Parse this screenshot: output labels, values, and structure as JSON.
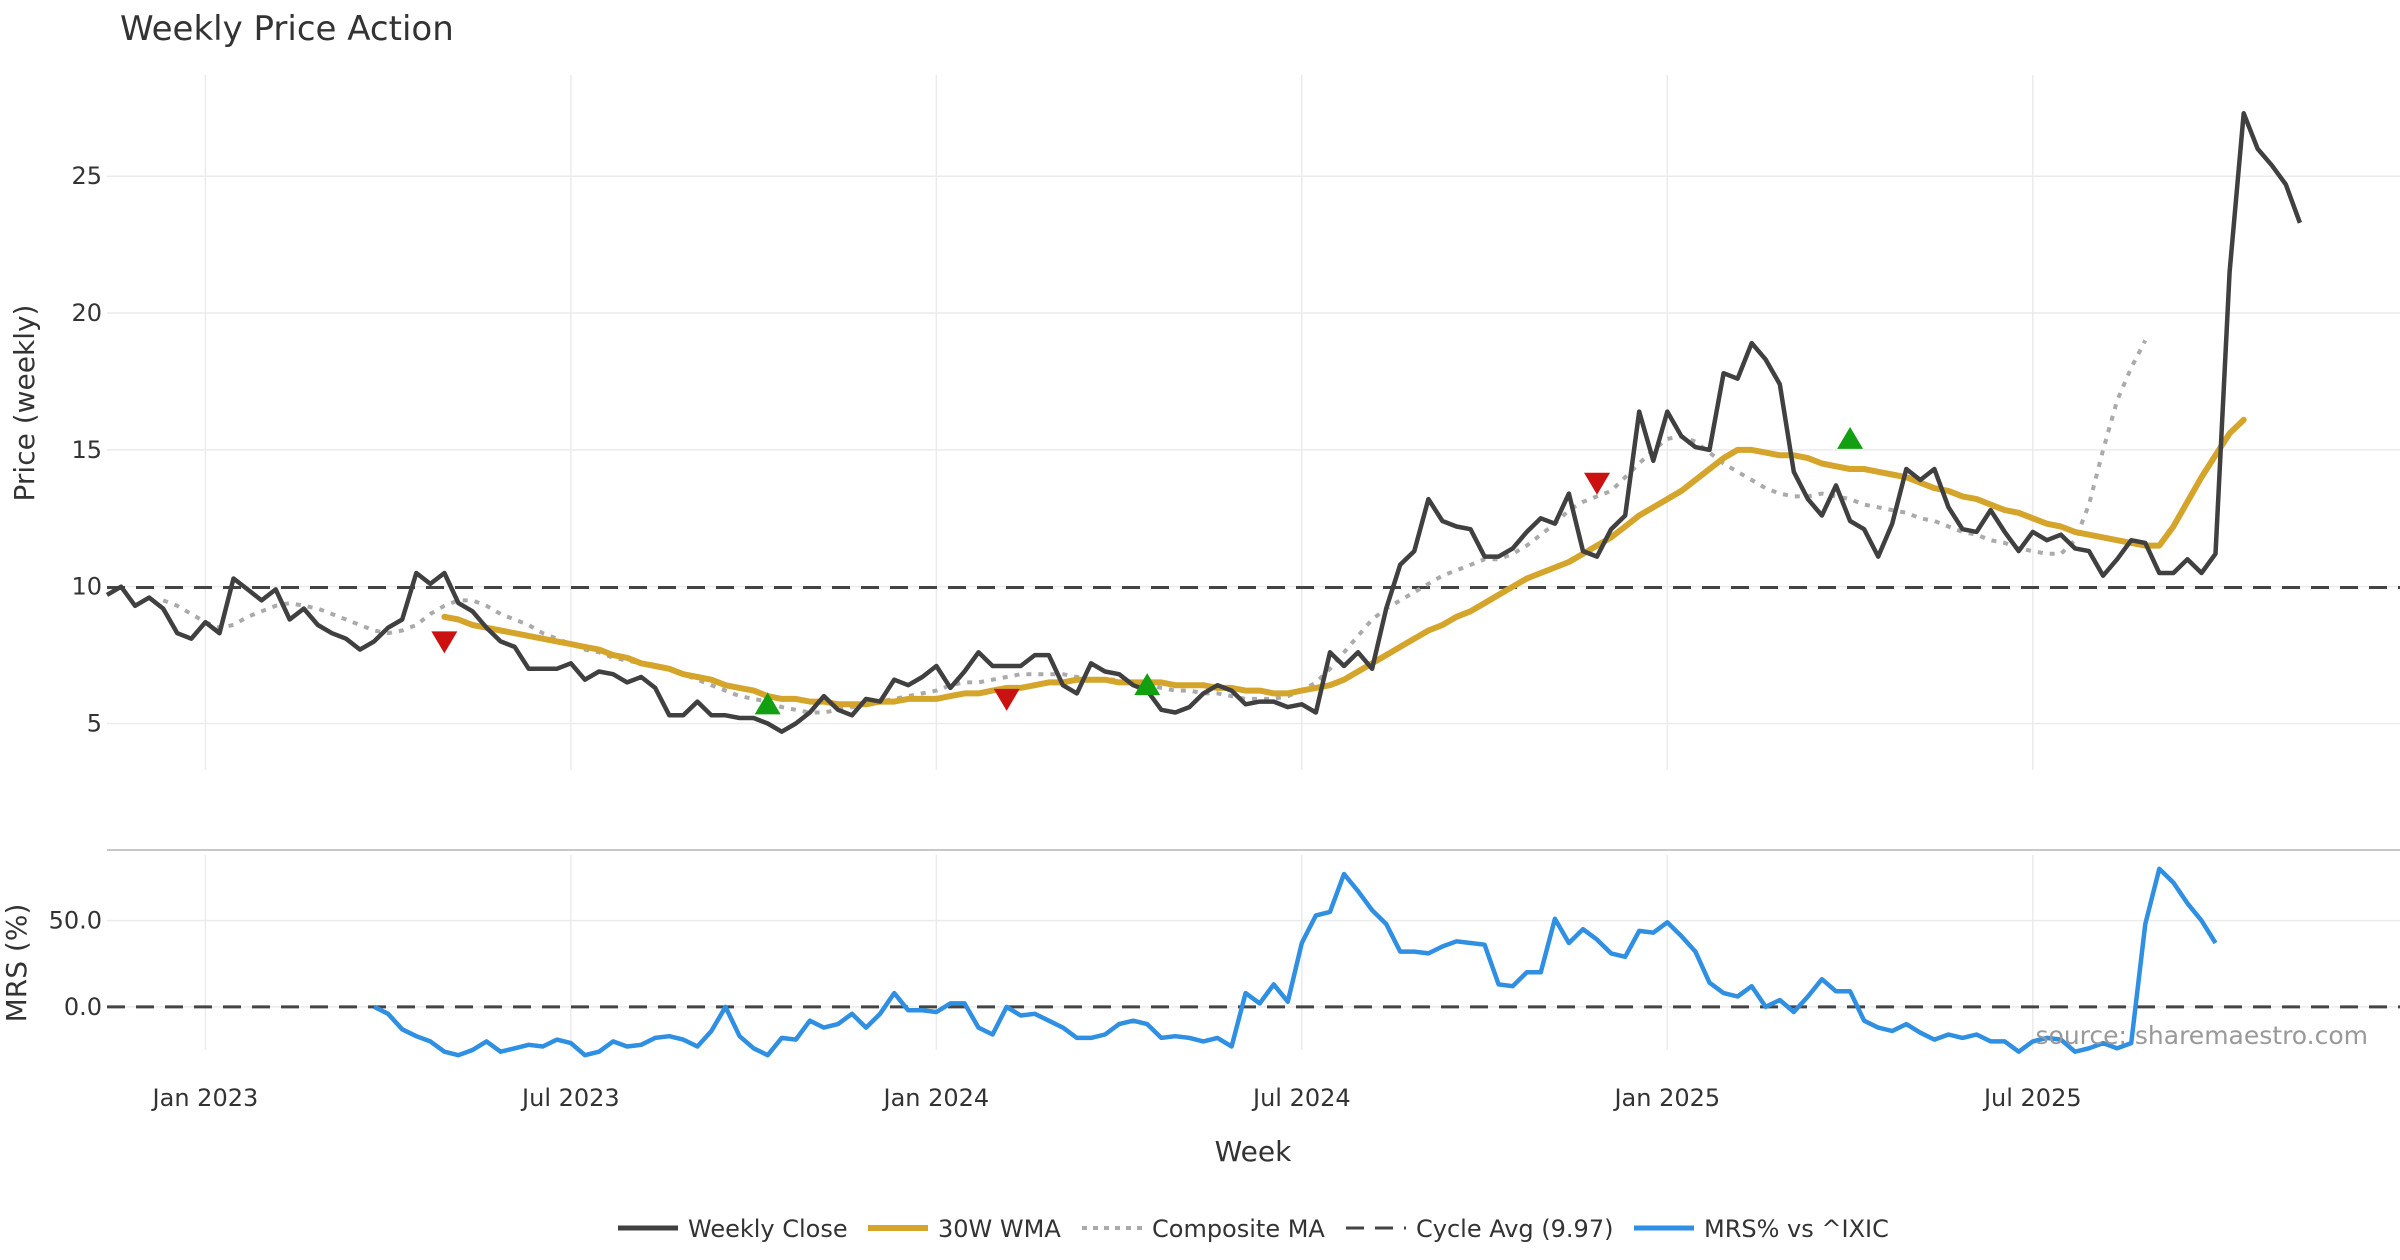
{
  "chart_data": {
    "type": "line",
    "title": "Weekly Price Action",
    "x_label": "Week",
    "price_panel": {
      "y_label": "Price (weekly)",
      "y_range": [
        3.3,
        28.7
      ],
      "y_ticks": [
        5,
        10,
        15,
        20,
        25
      ],
      "cycle_avg": 9.97,
      "weekly_close": [
        9.7,
        10.0,
        9.3,
        9.6,
        9.2,
        8.3,
        8.1,
        8.7,
        8.3,
        10.3,
        9.9,
        9.5,
        9.9,
        8.8,
        9.2,
        8.6,
        8.3,
        8.1,
        7.7,
        8.0,
        8.5,
        8.8,
        10.5,
        10.1,
        10.5,
        9.4,
        9.1,
        8.5,
        8.0,
        7.8,
        7.0,
        7.0,
        7.0,
        7.2,
        6.6,
        6.9,
        6.8,
        6.5,
        6.7,
        6.3,
        5.3,
        5.3,
        5.8,
        5.3,
        5.3,
        5.2,
        5.2,
        5.0,
        4.7,
        5.0,
        5.4,
        6.0,
        5.5,
        5.3,
        5.9,
        5.8,
        6.6,
        6.4,
        6.7,
        7.1,
        6.3,
        6.9,
        7.6,
        7.1,
        7.1,
        7.1,
        7.5,
        7.5,
        6.4,
        6.1,
        7.2,
        6.9,
        6.8,
        6.4,
        6.2,
        5.5,
        5.4,
        5.6,
        6.1,
        6.4,
        6.2,
        5.7,
        5.8,
        5.8,
        5.6,
        5.7,
        5.4,
        7.6,
        7.1,
        7.6,
        7.0,
        9.2,
        10.8,
        11.3,
        13.2,
        12.4,
        12.2,
        12.1,
        11.1,
        11.1,
        11.4,
        12.0,
        12.5,
        12.3,
        13.4,
        11.3,
        11.1,
        12.1,
        12.6,
        16.4,
        14.6,
        16.4,
        15.5,
        15.1,
        15.0,
        17.8,
        17.6,
        18.9,
        18.3,
        17.4,
        14.2,
        13.2,
        12.6,
        13.7,
        12.4,
        12.1,
        11.1,
        12.3,
        14.3,
        13.9,
        14.3,
        12.9,
        12.1,
        12.0,
        12.8,
        12.0,
        11.3,
        12.0,
        11.7,
        11.9,
        11.4,
        11.3,
        10.4,
        11.0,
        11.7,
        11.6,
        10.5,
        10.5,
        11.0,
        10.5,
        11.2,
        21.5,
        27.3,
        26.0,
        25.4,
        24.7,
        23.3
      ],
      "wma_30w_start_index": 24,
      "wma_30w": [
        8.9,
        8.8,
        8.6,
        8.5,
        8.4,
        8.3,
        8.2,
        8.1,
        8.0,
        7.9,
        7.8,
        7.7,
        7.5,
        7.4,
        7.2,
        7.1,
        7.0,
        6.8,
        6.7,
        6.6,
        6.4,
        6.3,
        6.2,
        6.0,
        5.9,
        5.9,
        5.8,
        5.8,
        5.7,
        5.7,
        5.7,
        5.8,
        5.8,
        5.9,
        5.9,
        5.9,
        6.0,
        6.1,
        6.1,
        6.2,
        6.3,
        6.3,
        6.4,
        6.5,
        6.5,
        6.6,
        6.6,
        6.6,
        6.5,
        6.5,
        6.5,
        6.5,
        6.4,
        6.4,
        6.4,
        6.3,
        6.3,
        6.2,
        6.2,
        6.1,
        6.1,
        6.2,
        6.3,
        6.4,
        6.6,
        6.9,
        7.2,
        7.5,
        7.8,
        8.1,
        8.4,
        8.6,
        8.9,
        9.1,
        9.4,
        9.7,
        10.0,
        10.3,
        10.5,
        10.7,
        10.9,
        11.2,
        11.5,
        11.8,
        12.2,
        12.6,
        12.9,
        13.2,
        13.5,
        13.9,
        14.3,
        14.7,
        15.0,
        15.0,
        14.9,
        14.8,
        14.8,
        14.7,
        14.5,
        14.4,
        14.3,
        14.3,
        14.2,
        14.1,
        14.0,
        13.8,
        13.6,
        13.5,
        13.3,
        13.2,
        13.0,
        12.8,
        12.7,
        12.5,
        12.3,
        12.2,
        12.0,
        11.9,
        11.8,
        11.7,
        11.6,
        11.5,
        11.5,
        12.2,
        13.1,
        14.0,
        14.8,
        15.6,
        16.1
      ],
      "composite_ma_start_index": 4,
      "composite_ma": [
        9.5,
        9.3,
        9.0,
        8.7,
        8.5,
        8.6,
        8.9,
        9.1,
        9.3,
        9.4,
        9.3,
        9.2,
        9.0,
        8.8,
        8.6,
        8.4,
        8.3,
        8.4,
        8.6,
        9.0,
        9.3,
        9.5,
        9.5,
        9.3,
        9.0,
        8.8,
        8.6,
        8.3,
        8.1,
        7.9,
        7.7,
        7.6,
        7.4,
        7.3,
        7.2,
        7.1,
        7.0,
        6.8,
        6.6,
        6.4,
        6.2,
        6.0,
        5.9,
        5.8,
        5.6,
        5.5,
        5.4,
        5.4,
        5.5,
        5.6,
        5.7,
        5.8,
        5.9,
        6.0,
        6.1,
        6.2,
        6.4,
        6.5,
        6.5,
        6.6,
        6.7,
        6.8,
        6.8,
        6.8,
        6.8,
        6.7,
        6.6,
        6.6,
        6.6,
        6.5,
        6.4,
        6.3,
        6.2,
        6.2,
        6.1,
        6.1,
        6.0,
        5.9,
        5.9,
        5.9,
        6.0,
        6.2,
        6.5,
        7.0,
        7.6,
        8.2,
        8.8,
        9.2,
        9.5,
        9.8,
        10.1,
        10.4,
        10.6,
        10.8,
        11.0,
        11.0,
        11.2,
        11.5,
        11.9,
        12.3,
        12.8,
        13.1,
        13.3,
        13.5,
        14.0,
        14.5,
        15.0,
        15.4,
        15.5,
        15.3,
        14.9,
        14.5,
        14.2,
        13.9,
        13.6,
        13.4,
        13.3,
        13.3,
        13.4,
        13.3,
        13.2,
        13.0,
        12.9,
        12.8,
        12.7,
        12.5,
        12.4,
        12.2,
        12.0,
        11.9,
        11.7,
        11.6,
        11.4,
        11.3,
        11.2,
        11.2,
        11.7,
        13.0,
        15.0,
        16.8,
        18.0,
        19.0
      ],
      "signals": [
        {
          "type": "sell",
          "index": 24,
          "value": 8.0
        },
        {
          "type": "buy",
          "index": 47,
          "value": 5.7
        },
        {
          "type": "sell",
          "index": 64,
          "value": 5.9
        },
        {
          "type": "buy",
          "index": 74,
          "value": 6.4
        },
        {
          "type": "sell",
          "index": 106,
          "value": 13.8
        },
        {
          "type": "buy",
          "index": 124,
          "value": 15.4
        }
      ]
    },
    "mrs_panel": {
      "y_label": "MRS (%)",
      "y_range": [
        -25,
        88
      ],
      "y_ticks": [
        "0.0",
        "50.0"
      ],
      "zero_line": 0,
      "start_index": 19,
      "values": [
        0,
        -4,
        -13,
        -17,
        -20,
        -26,
        -28,
        -25,
        -20,
        -26,
        -24,
        -22,
        -23,
        -19,
        -21,
        -28,
        -26,
        -20,
        -23,
        -22,
        -18,
        -17,
        -19,
        -23,
        -14,
        0,
        -17,
        -24,
        -28,
        -18,
        -19,
        -8,
        -12,
        -10,
        -4,
        -12,
        -4,
        8,
        -2,
        -2,
        -3,
        2,
        2,
        -12,
        -16,
        0,
        -5,
        -4,
        -8,
        -12,
        -18,
        -18,
        -16,
        -10,
        -8,
        -10,
        -18,
        -17,
        -18,
        -20,
        -18,
        -23,
        8,
        2,
        13,
        3,
        37,
        53,
        55,
        77,
        67,
        56,
        48,
        32,
        32,
        31,
        35,
        38,
        37,
        36,
        13,
        12,
        20,
        20,
        51,
        37,
        45,
        39,
        31,
        29,
        44,
        43,
        49,
        41,
        32,
        14,
        8,
        6,
        12,
        0,
        4,
        -3,
        6,
        16,
        9,
        9,
        -8,
        -12,
        -14,
        -10,
        -15,
        -19,
        -16,
        -18,
        -16,
        -20,
        -20,
        -26,
        -20,
        -18,
        -19,
        -26,
        -24,
        -21,
        -24,
        -21,
        48,
        80,
        72,
        60,
        50,
        37
      ]
    },
    "x_axis": {
      "num_weeks": 159,
      "ticks": [
        {
          "label": "Jan 2023",
          "index": 7
        },
        {
          "label": "Jul 2023",
          "index": 33
        },
        {
          "label": "Jan 2024",
          "index": 59
        },
        {
          "label": "Jul 2024",
          "index": 85
        },
        {
          "label": "Jan 2025",
          "index": 111
        },
        {
          "label": "Jul 2025",
          "index": 137
        }
      ]
    },
    "legend": [
      {
        "label": "Weekly Close",
        "style": "solid-dark"
      },
      {
        "label": "30W WMA",
        "style": "solid-gold"
      },
      {
        "label": "Composite MA",
        "style": "dotted-gray"
      },
      {
        "label": "Cycle Avg (9.97)",
        "style": "dashed-dark"
      },
      {
        "label": "MRS% vs ^IXIC",
        "style": "solid-blue"
      }
    ],
    "source": "source: sharemaestro.com"
  },
  "colors": {
    "close": "#404040",
    "wma": "#d4a52a",
    "composite": "#aaaaaa",
    "cycle": "#444444",
    "mrs": "#2f8fe3",
    "buy": "#12a012",
    "sell": "#cc1111",
    "grid": "#ebebeb",
    "separator": "#c8c8c8"
  }
}
